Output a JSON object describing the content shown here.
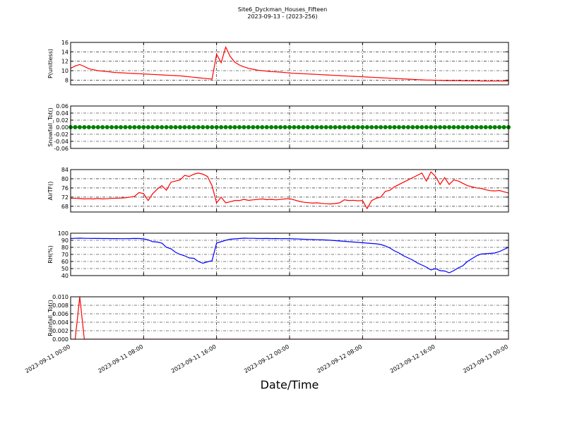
{
  "title": "Site6_Dyckman_Houses_Fifteen",
  "subtitle": "2023-09-13 - (2023-256)",
  "xlabel": "Date/Time",
  "x": [
    "2023-09-11 00:00",
    "2023-09-11 00:30",
    "2023-09-11 01:00",
    "2023-09-11 01:30",
    "2023-09-11 02:00",
    "2023-09-11 02:30",
    "2023-09-11 03:00",
    "2023-09-11 03:30",
    "2023-09-11 04:00",
    "2023-09-11 04:30",
    "2023-09-11 05:00",
    "2023-09-11 05:30",
    "2023-09-11 06:00",
    "2023-09-11 06:30",
    "2023-09-11 07:00",
    "2023-09-11 07:30",
    "2023-09-11 08:00",
    "2023-09-11 08:30",
    "2023-09-11 09:00",
    "2023-09-11 09:30",
    "2023-09-11 10:00",
    "2023-09-11 10:30",
    "2023-09-11 11:00",
    "2023-09-11 11:30",
    "2023-09-11 12:00",
    "2023-09-11 12:30",
    "2023-09-11 13:00",
    "2023-09-11 13:30",
    "2023-09-11 14:00",
    "2023-09-11 14:30",
    "2023-09-11 15:00",
    "2023-09-11 15:30",
    "2023-09-11 16:00",
    "2023-09-11 16:30",
    "2023-09-11 17:00",
    "2023-09-11 17:30",
    "2023-09-11 18:00",
    "2023-09-11 18:30",
    "2023-09-11 19:00",
    "2023-09-11 19:30",
    "2023-09-11 20:00",
    "2023-09-11 20:30",
    "2023-09-11 21:00",
    "2023-09-11 21:30",
    "2023-09-11 22:00",
    "2023-09-11 22:30",
    "2023-09-11 23:00",
    "2023-09-11 23:30",
    "2023-09-12 00:00",
    "2023-09-12 00:30",
    "2023-09-12 01:00",
    "2023-09-12 01:30",
    "2023-09-12 02:00",
    "2023-09-12 02:30",
    "2023-09-12 03:00",
    "2023-09-12 03:30",
    "2023-09-12 04:00",
    "2023-09-12 04:30",
    "2023-09-12 05:00",
    "2023-09-12 05:30",
    "2023-09-12 06:00",
    "2023-09-12 06:30",
    "2023-09-12 07:00",
    "2023-09-12 07:30",
    "2023-09-12 08:00",
    "2023-09-12 08:30",
    "2023-09-12 09:00",
    "2023-09-12 09:30",
    "2023-09-12 10:00",
    "2023-09-12 10:30",
    "2023-09-12 11:00",
    "2023-09-12 11:30",
    "2023-09-12 12:00",
    "2023-09-12 12:30",
    "2023-09-12 13:00",
    "2023-09-12 13:30",
    "2023-09-12 14:00",
    "2023-09-12 14:30",
    "2023-09-12 15:00",
    "2023-09-12 15:30",
    "2023-09-12 16:00",
    "2023-09-12 16:30",
    "2023-09-12 17:00",
    "2023-09-12 17:30",
    "2023-09-12 18:00",
    "2023-09-12 18:30",
    "2023-09-12 19:00",
    "2023-09-12 19:30",
    "2023-09-12 20:00",
    "2023-09-12 20:30",
    "2023-09-12 21:00",
    "2023-09-12 21:30",
    "2023-09-12 22:00",
    "2023-09-12 22:30",
    "2023-09-12 23:00",
    "2023-09-12 23:30",
    "2023-09-13 00:00"
  ],
  "xlim": [
    "2023-09-11 00:00",
    "2023-09-13 00:00"
  ],
  "xticks": [
    "2023-09-11 00:00",
    "2023-09-11 08:00",
    "2023-09-11 16:00",
    "2023-09-12 00:00",
    "2023-09-12 08:00",
    "2023-09-12 16:00",
    "2023-09-13 00:00"
  ],
  "chart_data": [
    {
      "type": "line",
      "ylabel": "P(unitless)",
      "color": "#ff0000",
      "grid": true,
      "ylim": [
        7,
        16
      ],
      "yticks": [
        8,
        10,
        12,
        14,
        16
      ],
      "values": [
        10.5,
        11.0,
        11.3,
        10.9,
        10.4,
        10.2,
        10.0,
        9.9,
        9.8,
        9.7,
        9.6,
        9.55,
        9.5,
        9.45,
        9.4,
        9.35,
        9.3,
        9.25,
        9.2,
        9.15,
        9.1,
        9.05,
        9.0,
        8.95,
        8.9,
        8.8,
        8.7,
        8.6,
        8.5,
        8.4,
        8.3,
        8.2,
        13.5,
        11.7,
        15.0,
        13.0,
        11.8,
        11.2,
        10.8,
        10.5,
        10.3,
        10.1,
        10.0,
        9.9,
        9.8,
        9.75,
        9.7,
        9.6,
        9.5,
        9.45,
        9.4,
        9.35,
        9.3,
        9.25,
        9.2,
        9.15,
        9.1,
        9.05,
        9.0,
        8.95,
        8.9,
        8.85,
        8.8,
        8.75,
        8.7,
        8.65,
        8.6,
        8.55,
        8.5,
        8.45,
        8.4,
        8.35,
        8.3,
        8.25,
        8.2,
        8.15,
        8.1,
        8.05,
        8.0,
        8.0,
        7.95,
        7.95,
        7.9,
        7.9,
        7.9,
        7.9,
        7.85,
        7.85,
        7.85,
        7.85,
        7.8,
        7.8,
        7.8,
        7.8,
        7.8,
        7.8,
        7.8
      ]
    },
    {
      "type": "line",
      "ylabel": "Snowfall_Tot()",
      "color": "#008000",
      "markers": true,
      "grid": true,
      "ylim": [
        -0.06,
        0.06
      ],
      "yticks": [
        -0.06,
        -0.04,
        -0.02,
        {
          "value": 0,
          "label": "0.00"
        },
        0.02,
        0.04,
        0.06
      ],
      "values": [
        0,
        0,
        0,
        0,
        0,
        0,
        0,
        0,
        0,
        0,
        0,
        0,
        0,
        0,
        0,
        0,
        0,
        0,
        0,
        0,
        0,
        0,
        0,
        0,
        0,
        0,
        0,
        0,
        0,
        0,
        0,
        0,
        0,
        0,
        0,
        0,
        0,
        0,
        0,
        0,
        0,
        0,
        0,
        0,
        0,
        0,
        0,
        0,
        0,
        0,
        0,
        0,
        0,
        0,
        0,
        0,
        0,
        0,
        0,
        0,
        0,
        0,
        0,
        0,
        0,
        0,
        0,
        0,
        0,
        0,
        0,
        0,
        0,
        0,
        0,
        0,
        0,
        0,
        0,
        0,
        0,
        0,
        0,
        0,
        0,
        0,
        0,
        0,
        0,
        0,
        0,
        0,
        0,
        0,
        0,
        0,
        0
      ]
    },
    {
      "type": "line",
      "ylabel": "AirTF()",
      "color": "#ff0000",
      "grid": true,
      "ylim": [
        65.5,
        84
      ],
      "yticks": [
        68,
        72,
        76,
        80,
        84
      ],
      "values": [
        71.5,
        71.5,
        71.4,
        71.2,
        71.3,
        71.2,
        71.4,
        71.2,
        71.3,
        71.5,
        71.5,
        71.6,
        71.7,
        72.0,
        72.3,
        74.0,
        73.5,
        70.5,
        73.5,
        75.5,
        77.0,
        75.0,
        78.5,
        79.0,
        79.5,
        81.5,
        81.0,
        82.0,
        82.5,
        82.0,
        81.0,
        77.0,
        69.5,
        72.0,
        69.5,
        70.0,
        70.5,
        70.5,
        71.0,
        70.6,
        70.8,
        71.0,
        71.2,
        70.9,
        71.0,
        70.8,
        71.0,
        71.2,
        71.3,
        70.8,
        70.2,
        69.8,
        69.6,
        69.4,
        69.5,
        69.3,
        69.1,
        69.0,
        69.2,
        69.5,
        70.8,
        70.5,
        70.6,
        70.4,
        70.5,
        67.0,
        70.5,
        71.5,
        72.0,
        74.5,
        75.0,
        76.5,
        77.5,
        78.5,
        79.5,
        80.5,
        81.5,
        82.5,
        79.0,
        83.0,
        81.0,
        77.5,
        80.5,
        77.5,
        79.5,
        79.0,
        78.0,
        77.0,
        76.5,
        76.0,
        75.8,
        75.2,
        74.8,
        74.7,
        74.9,
        74.3,
        73.8
      ]
    },
    {
      "type": "line",
      "ylabel": "RH(%)",
      "color": "#0000ff",
      "grid": true,
      "ylim": [
        40,
        100
      ],
      "yticks": [
        40,
        50,
        60,
        70,
        80,
        90,
        100
      ],
      "values": [
        92.5,
        92.8,
        93.0,
        92.8,
        92.7,
        92.6,
        92.6,
        92.5,
        92.5,
        92.4,
        92.4,
        92.3,
        92.3,
        92.4,
        92.6,
        92.5,
        92.0,
        90.5,
        88.0,
        87.5,
        86.0,
        80.0,
        78.0,
        73.0,
        70.0,
        68.0,
        65.0,
        64.5,
        60.0,
        57.5,
        59.5,
        61.0,
        86.0,
        88.0,
        90.0,
        91.5,
        92.0,
        92.5,
        93.0,
        92.8,
        92.8,
        92.5,
        92.5,
        92.6,
        92.4,
        92.5,
        92.3,
        92.4,
        92.3,
        92.0,
        91.8,
        91.5,
        91.2,
        91.0,
        90.8,
        90.6,
        90.4,
        90.0,
        89.5,
        89.0,
        88.5,
        88.0,
        87.5,
        87.0,
        86.5,
        86.0,
        85.5,
        85.0,
        84.0,
        82.0,
        79.0,
        75.0,
        72.0,
        68.0,
        65.0,
        62.0,
        58.0,
        55.0,
        52.0,
        48.0,
        50.0,
        47.0,
        46.5,
        44.0,
        47.0,
        51.0,
        54.0,
        60.0,
        64.0,
        68.0,
        70.5,
        71.0,
        71.5,
        72.0,
        74.0,
        77.0,
        80.0
      ]
    },
    {
      "type": "line",
      "ylabel": "Rainfall_Tot()",
      "color": "#ff0000",
      "grid": true,
      "ylim": [
        0,
        0.01
      ],
      "yticks": [
        {
          "value": 0,
          "label": "0.000"
        },
        0.002,
        0.004,
        0.006,
        0.008,
        {
          "value": 0.01,
          "label": "0.010"
        }
      ],
      "values": [
        0,
        0,
        0.01,
        0,
        0,
        0,
        0,
        0,
        0,
        0,
        0,
        0,
        0,
        0,
        0,
        0,
        0,
        0,
        0,
        0,
        0,
        0,
        0,
        0,
        0,
        0,
        0,
        0,
        0,
        0,
        0,
        0,
        0,
        0,
        0,
        0,
        0,
        0,
        0,
        0,
        0,
        0,
        0,
        0,
        0,
        0,
        0,
        0,
        0,
        0,
        0,
        0,
        0,
        0,
        0,
        0,
        0,
        0,
        0,
        0,
        0,
        0,
        0,
        0,
        0,
        0,
        0,
        0,
        0,
        0,
        0,
        0,
        0,
        0,
        0,
        0,
        0,
        0,
        0,
        0,
        0,
        0,
        0,
        0,
        0,
        0,
        0,
        0,
        0,
        0,
        0,
        0,
        0,
        0,
        0,
        0,
        0
      ]
    }
  ]
}
